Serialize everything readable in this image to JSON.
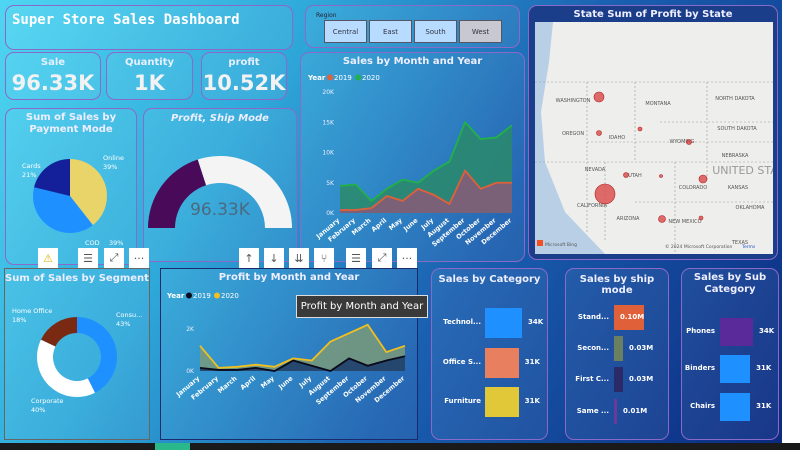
{
  "header": {
    "title": "Super Store Sales Dashboard"
  },
  "slicer": {
    "label": "Region",
    "options": [
      "Central",
      "East",
      "South",
      "West"
    ],
    "selected": "West"
  },
  "kpis": [
    {
      "label": "Sale",
      "value": "96.33K"
    },
    {
      "label": "Quantity",
      "value": "1K"
    },
    {
      "label": "profit",
      "value": "10.52K"
    }
  ],
  "gauge": {
    "title": "Profit, Ship Mode",
    "value": "96.33K",
    "fill_fraction": 0.4,
    "colors": {
      "fill": "#4a0a5a",
      "rest": "#f4f4f4"
    }
  },
  "toolbar_left": [
    "warning-icon",
    "filter-icon",
    "focus-mode-icon",
    "more-options-icon"
  ],
  "toolbar_right": [
    "drill-up-icon",
    "drill-down-icon",
    "expand-all-icon",
    "expand-hierarchy-icon",
    "filter-icon",
    "focus-mode-icon",
    "more-options-icon"
  ],
  "tooltip": "Profit by Month and Year",
  "map": {
    "title": "State Sum of Profit by State",
    "attribution": "© 2024 Microsoft Corporation",
    "terms": "Terms",
    "logo": "Microsoft Bing",
    "labels": [
      "WASHINGTON",
      "MONTANA",
      "NORTH DAKOTA",
      "OREGON",
      "IDAHO",
      "SOUTH DAKOTA",
      "WYOMING",
      "NEBRASKA",
      "NEVADA",
      "UTAH",
      "UNITED STA",
      "COLORADO",
      "KANSAS",
      "CALIFORNIA",
      "OKLAHOMA",
      "ARIZONA",
      "NEW MEXICO",
      "TEXAS"
    ],
    "bubble_states": [
      "WASHINGTON",
      "OREGON",
      "IDAHO",
      "WYOMING",
      "NEVADA",
      "UTAH",
      "COLORADO",
      "CALIFORNIA",
      "ARIZONA",
      "NEW MEXICO"
    ]
  },
  "chart_data": [
    {
      "type": "area",
      "title": "Sales by Month and Year",
      "legend_title": "Year",
      "stacked": true,
      "categories": [
        "January",
        "February",
        "March",
        "April",
        "May",
        "June",
        "July",
        "August",
        "September",
        "October",
        "November",
        "December"
      ],
      "yticks": [
        "0K",
        "5K",
        "10K",
        "15K",
        "20K"
      ],
      "ylim": [
        0,
        20000
      ],
      "series": [
        {
          "name": "2019",
          "color": "#e0603a",
          "values": [
            500,
            500,
            800,
            2800,
            2000,
            4000,
            3000,
            1500,
            7000,
            4000,
            5000,
            5000
          ]
        },
        {
          "name": "2020",
          "color": "#22b04a",
          "values": [
            4000,
            4200,
            1200,
            1200,
            3500,
            1000,
            4000,
            7000,
            8000,
            8200,
            7500,
            9500
          ]
        }
      ]
    },
    {
      "type": "area",
      "title": "Profit by Month and Year",
      "legend_title": "Year",
      "stacked": false,
      "categories": [
        "January",
        "February",
        "March",
        "April",
        "May",
        "June",
        "July",
        "August",
        "September",
        "October",
        "November",
        "December"
      ],
      "yticks": [
        "0K",
        "2K"
      ],
      "ylim": [
        0,
        2000
      ],
      "series": [
        {
          "name": "2019",
          "color": "#0a0a1a",
          "values": [
            150,
            50,
            50,
            150,
            0,
            500,
            250,
            0,
            600,
            250,
            500,
            700
          ]
        },
        {
          "name": "2020",
          "color": "#f0c020",
          "values": [
            1200,
            150,
            200,
            300,
            200,
            600,
            500,
            1400,
            1800,
            2200,
            900,
            1200
          ]
        }
      ]
    },
    {
      "type": "pie",
      "title": "Sum of Sales by Payment Mode",
      "slices": [
        {
          "label": "Online",
          "pct": 39,
          "color": "#e8d468"
        },
        {
          "label": "COD",
          "pct": 39,
          "color": "#1e90ff"
        },
        {
          "label": "Cards",
          "pct": 21,
          "color": "#14209a"
        }
      ]
    },
    {
      "type": "pie",
      "donut": true,
      "title": "Sum of Sales by Segment",
      "slices": [
        {
          "label": "Consu...",
          "pct": 43,
          "color": "#1e90ff"
        },
        {
          "label": "Corporate",
          "pct": 40,
          "color": "#ffffff"
        },
        {
          "label": "Home Office",
          "pct": 18,
          "color": "#7a2a12"
        }
      ]
    },
    {
      "type": "bar",
      "title": "Sales by Category",
      "unit": "K",
      "categories": [
        "Technol...",
        "Office S...",
        "Furniture"
      ],
      "values": [
        34,
        31,
        31
      ],
      "labels": [
        "34K",
        "31K",
        "31K"
      ],
      "colors": [
        "#1e90ff",
        "#e88060",
        "#e0c838"
      ]
    },
    {
      "type": "bar",
      "title": "Sales by ship mode",
      "unit": "M",
      "categories": [
        "Stand...",
        "Secon...",
        "First C...",
        "Same ..."
      ],
      "values": [
        0.1,
        0.03,
        0.03,
        0.01
      ],
      "labels": [
        "0.10M",
        "0.03M",
        "0.03M",
        "0.01M"
      ],
      "colors": [
        "#e0603a",
        "#6a8060",
        "#2a2a68",
        "#6a3a9a"
      ]
    },
    {
      "type": "bar",
      "title": "Sales by Sub Category",
      "unit": "K",
      "categories": [
        "Phones",
        "Binders",
        "Chairs"
      ],
      "values": [
        34,
        31,
        31
      ],
      "labels": [
        "34K",
        "31K",
        "31K"
      ],
      "colors": [
        "#5a2a9a",
        "#1e90ff",
        "#1e90ff"
      ]
    }
  ]
}
